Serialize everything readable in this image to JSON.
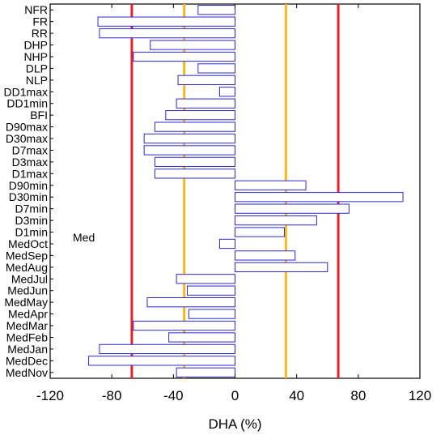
{
  "chart_data": {
    "type": "bar",
    "orientation": "horizontal",
    "xlabel": "DHA (%)",
    "xlim": [
      -120,
      120
    ],
    "xticks": [
      -120,
      -80,
      -40,
      0,
      40,
      80,
      120
    ],
    "annotation": "Med",
    "reference_lines": [
      {
        "x": -67,
        "color": "#e8202a"
      },
      {
        "x": 67,
        "color": "#e8202a"
      },
      {
        "x": -33,
        "color": "#f7b71d"
      },
      {
        "x": 33,
        "color": "#f7b71d"
      }
    ],
    "bar_stroke": "#2a2ad0",
    "categories": [
      "NFR",
      "FR",
      "RR",
      "DHP",
      "NHP",
      "DLP",
      "NLP",
      "DD1max",
      "DD1min",
      "BFI",
      "D90max",
      "D30max",
      "D7max",
      "D3max",
      "D1max",
      "D90min",
      "D30min",
      "D7min",
      "D3min",
      "D1min",
      "MedOct",
      "MedSep",
      "MedAug",
      "MedJul",
      "MedJun",
      "MedMay",
      "MedApr",
      "MedMar",
      "MedFeb",
      "MedJan",
      "MedDec",
      "MedNov"
    ],
    "values": [
      -24,
      -89,
      -88,
      -55,
      -66,
      -24,
      -37,
      -10,
      -38,
      -45,
      -52,
      -59,
      -59,
      -52,
      -52,
      46,
      109,
      74,
      53,
      32,
      -10,
      39,
      60,
      -38,
      -31,
      -57,
      -30,
      -66,
      -43,
      -88,
      -95,
      -38
    ]
  }
}
